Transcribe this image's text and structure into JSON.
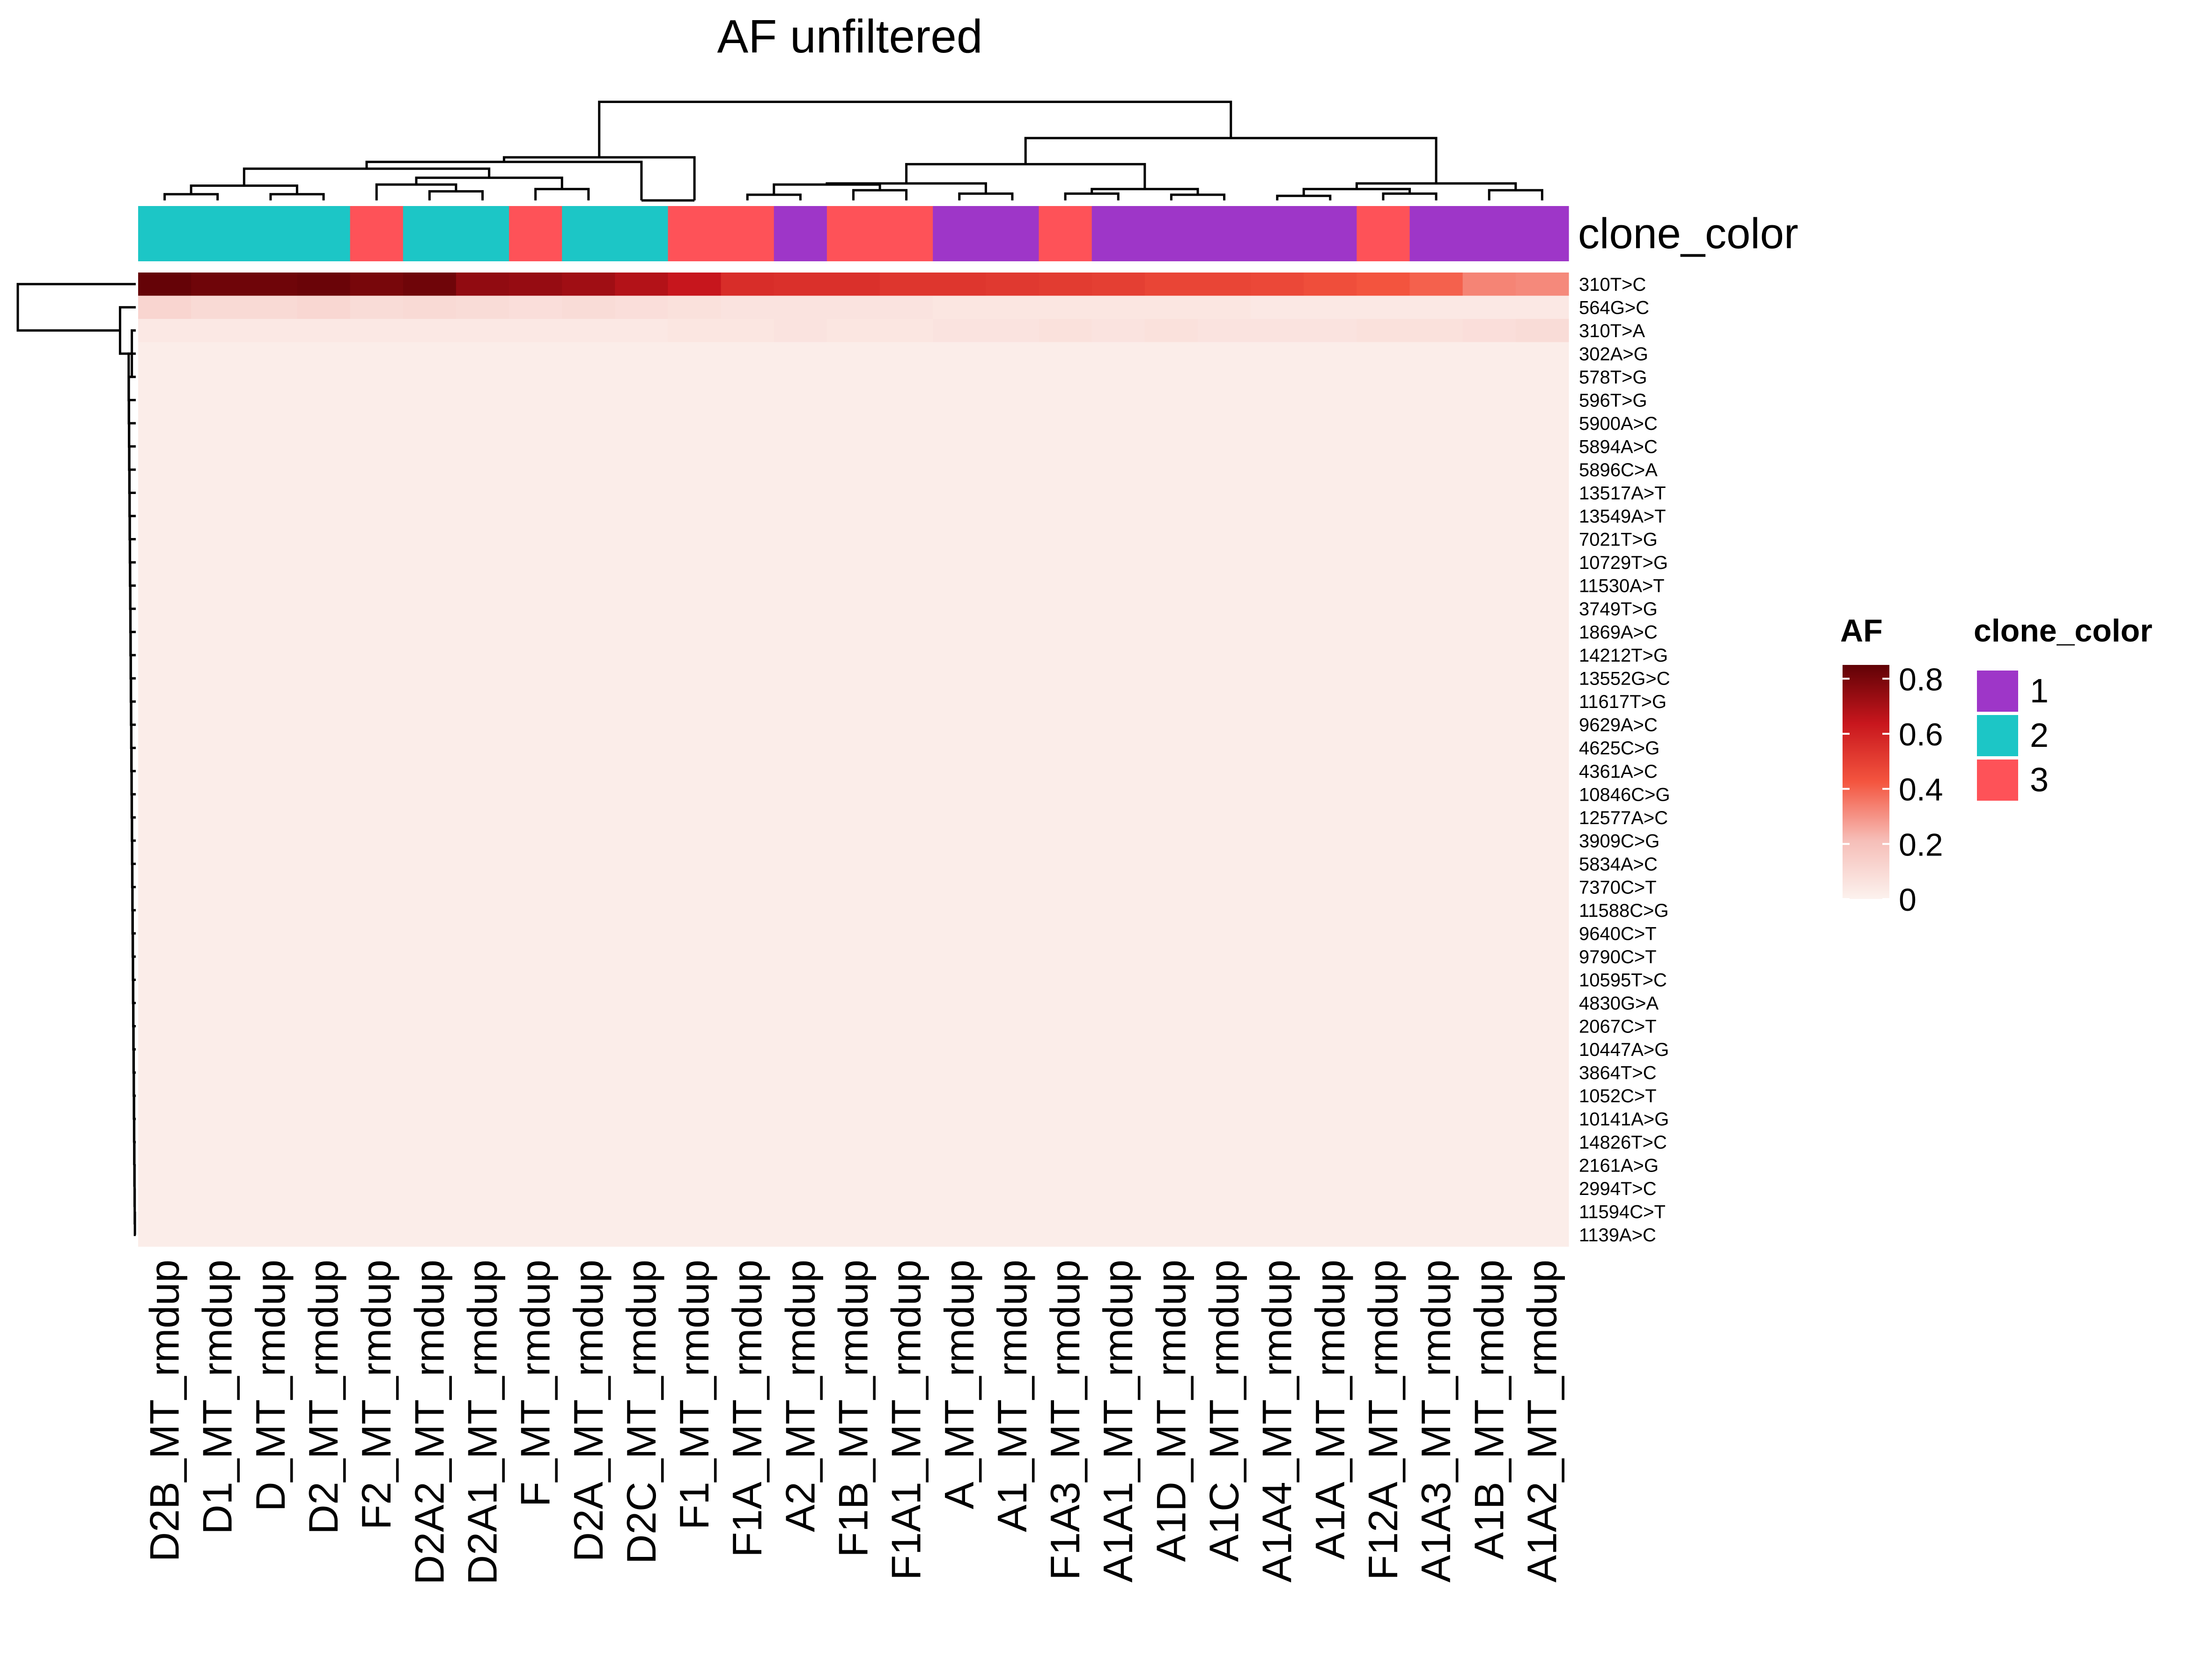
{
  "chart_data": {
    "type": "heatmap",
    "title": "AF unfiltered",
    "columns": [
      "D2B_MT_rmdup",
      "D1_MT_rmdup",
      "D_MT_rmdup",
      "D2_MT_rmdup",
      "F2_MT_rmdup",
      "D2A2_MT_rmdup",
      "D2A1_MT_rmdup",
      "F_MT_rmdup",
      "D2A_MT_rmdup",
      "D2C_MT_rmdup",
      "F1_MT_rmdup",
      "F1A_MT_rmdup",
      "A2_MT_rmdup",
      "F1B_MT_rmdup",
      "F1A1_MT_rmdup",
      "A_MT_rmdup",
      "A1_MT_rmdup",
      "F1A3_MT_rmdup",
      "A1A1_MT_rmdup",
      "A1D_MT_rmdup",
      "A1C_MT_rmdup",
      "A1A4_MT_rmdup",
      "A1A_MT_rmdup",
      "F12A_MT_rmdup",
      "A1A3_MT_rmdup",
      "A1B_MT_rmdup",
      "A1A2_MT_rmdup"
    ],
    "rows": [
      "310T>C",
      "564G>C",
      "310T>A",
      "302A>G",
      "578T>G",
      "596T>G",
      "5900A>C",
      "5894A>C",
      "5896C>A",
      "13517A>T",
      "13549A>T",
      "7021T>G",
      "10729T>G",
      "11530A>T",
      "3749T>G",
      "1869A>C",
      "14212T>G",
      "13552G>C",
      "11617T>G",
      "9629A>C",
      "4625C>G",
      "4361A>C",
      "10846C>G",
      "12577A>C",
      "3909C>G",
      "5834A>C",
      "7370C>T",
      "11588C>G",
      "9640C>T",
      "9790C>T",
      "10595T>C",
      "4830G>A",
      "2067C>T",
      "10447A>G",
      "3864T>C",
      "1052C>T",
      "10141A>G",
      "14826T>C",
      "2161A>G",
      "2994T>C",
      "11594C>T",
      "1139A>C"
    ],
    "values_by_row": {
      "310T>C": [
        0.84,
        0.82,
        0.82,
        0.83,
        0.8,
        0.82,
        0.75,
        0.74,
        0.72,
        0.68,
        0.64,
        0.56,
        0.55,
        0.55,
        0.53,
        0.53,
        0.52,
        0.51,
        0.5,
        0.48,
        0.48,
        0.47,
        0.45,
        0.43,
        0.4,
        0.33,
        0.32
      ],
      "564G>C": [
        0.12,
        0.1,
        0.1,
        0.11,
        0.09,
        0.1,
        0.09,
        0.08,
        0.09,
        0.08,
        0.07,
        0.06,
        0.06,
        0.06,
        0.06,
        0.05,
        0.05,
        0.05,
        0.05,
        0.05,
        0.05,
        0.04,
        0.04,
        0.04,
        0.04,
        0.04,
        0.04
      ],
      "310T>A": [
        0.04,
        0.04,
        0.04,
        0.04,
        0.04,
        0.04,
        0.04,
        0.04,
        0.04,
        0.04,
        0.05,
        0.05,
        0.06,
        0.05,
        0.05,
        0.06,
        0.06,
        0.07,
        0.06,
        0.07,
        0.06,
        0.06,
        0.06,
        0.07,
        0.07,
        0.08,
        0.09
      ]
    },
    "background_value": 0.02,
    "value_range": [
      0,
      0.85
    ],
    "legend": {
      "af_title": "AF",
      "af_ticks": [
        "0.8",
        "0.6",
        "0.4",
        "0.2",
        "0"
      ],
      "clone_title": "clone_color",
      "clone_items": [
        {
          "label": "1",
          "color": "#9e36c8"
        },
        {
          "label": "2",
          "color": "#1cc6c6"
        },
        {
          "label": "3",
          "color": "#fe5258"
        }
      ]
    },
    "annotation_label": "clone_color",
    "clone_assignment": [
      2,
      2,
      2,
      2,
      3,
      2,
      2,
      3,
      2,
      2,
      3,
      3,
      1,
      3,
      3,
      1,
      1,
      3,
      1,
      1,
      1,
      1,
      1,
      3,
      1,
      1,
      1
    ],
    "color_scale": [
      "#fcf2ee",
      "#f6beb8",
      "#f4553f",
      "#c8161d",
      "#600206"
    ]
  }
}
